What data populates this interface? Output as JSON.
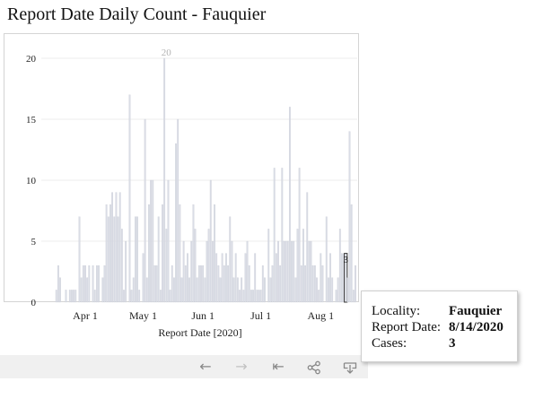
{
  "title": "Report Date Daily Count - Fauquier",
  "chart_data": {
    "type": "bar",
    "title": "Report Date Daily Count - Fauquier",
    "xlabel": "Report Date [2020]",
    "ylabel": "",
    "ylim": [
      0,
      22
    ],
    "y_ticks": [
      0,
      5,
      10,
      15,
      20
    ],
    "x_start": "2020-03-17",
    "x_ticks": [
      {
        "label": "Apr 1",
        "date": "2020-04-01"
      },
      {
        "label": "May 1",
        "date": "2020-05-01"
      },
      {
        "label": "Jun 1",
        "date": "2020-06-01"
      },
      {
        "label": "Jul 1",
        "date": "2020-07-01"
      },
      {
        "label": "Aug 1",
        "date": "2020-08-01"
      }
    ],
    "values": [
      1,
      3,
      2,
      0,
      0,
      1,
      0,
      1,
      1,
      1,
      1,
      0,
      7,
      2,
      3,
      3,
      2,
      3,
      0,
      3,
      1,
      3,
      3,
      0,
      2,
      3,
      8,
      7,
      8,
      9,
      7,
      9,
      7,
      9,
      6,
      1,
      5,
      0,
      17,
      1,
      2,
      7,
      7,
      1,
      0,
      4,
      15,
      2,
      8,
      10,
      10,
      3,
      3,
      7,
      1,
      8,
      20,
      6,
      10,
      1,
      3,
      2,
      13,
      15,
      8,
      2,
      5,
      3,
      4,
      2,
      5,
      8,
      6,
      2,
      3,
      3,
      3,
      2,
      5,
      6,
      10,
      5,
      8,
      4,
      3,
      2,
      4,
      3,
      4,
      3,
      7,
      5,
      2,
      4,
      2,
      1,
      2,
      1,
      4,
      5,
      3,
      1,
      1,
      4,
      1,
      1,
      1,
      3,
      2,
      0,
      6,
      2,
      3,
      11,
      4,
      5,
      3,
      11,
      5,
      5,
      5,
      16,
      5,
      5,
      2,
      6,
      11,
      3,
      6,
      3,
      9,
      5,
      5,
      3,
      3,
      2,
      1,
      4,
      3,
      0,
      7,
      2,
      4,
      2,
      0,
      1,
      2,
      6,
      4,
      4,
      4,
      2,
      14,
      8,
      1,
      3
    ],
    "highlight": {
      "date": "2020-08-14",
      "value": 3
    },
    "peak_label": {
      "date": "2020-05-13",
      "value": 20
    },
    "grid": true
  },
  "tooltip": {
    "locality_label": "Locality:",
    "locality_value": "Fauquier",
    "date_label": "Report Date:",
    "date_value": "8/14/2020",
    "cases_label": "Cases:",
    "cases_value": "3"
  },
  "toolbar": {
    "undo_icon": "left-arrow-icon",
    "redo_icon": "right-arrow-icon",
    "revert_icon": "revert-to-start-icon",
    "share_icon": "share-icon",
    "download_icon": "download-icon"
  },
  "colors": {
    "bar": "#dadde6",
    "bar_edge": "#c7cad4",
    "highlight_bar": "#e8ebf2",
    "highlight_edge": "#333333",
    "grid": "#eeeeee"
  }
}
